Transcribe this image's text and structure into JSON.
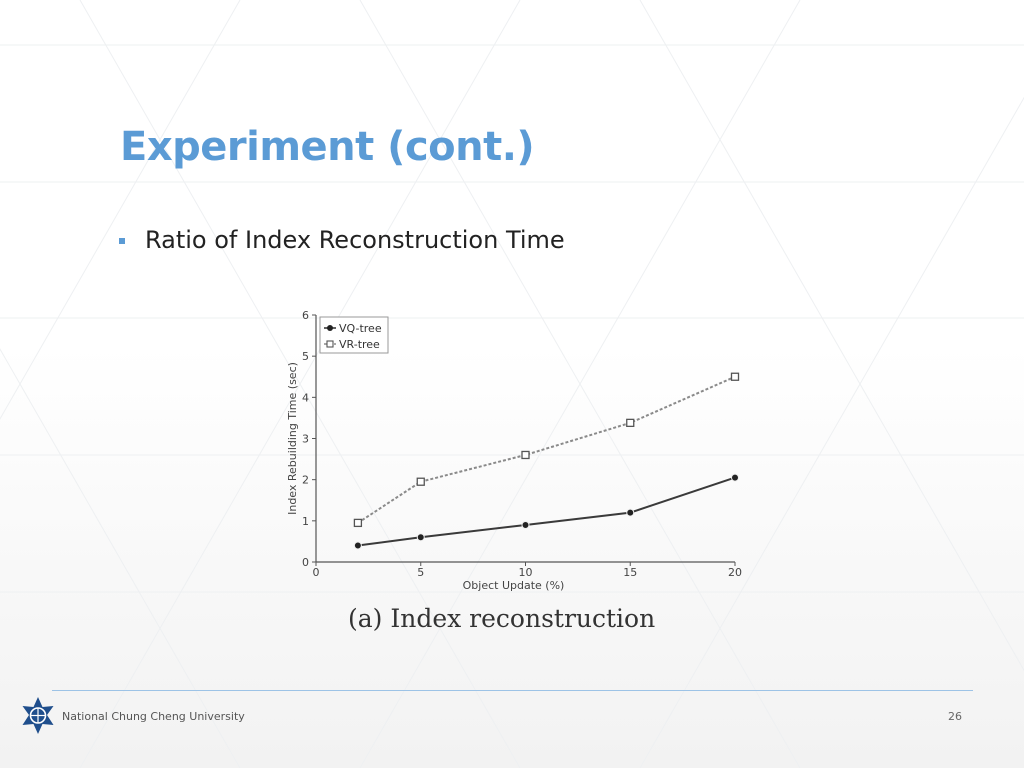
{
  "slide": {
    "title": "Experiment (cont.)",
    "bullet": "Ratio of Index Reconstruction Time",
    "caption": "(a) Index reconstruction"
  },
  "footer": {
    "university": "National Chung Cheng University",
    "page_number": "26"
  },
  "colors": {
    "title": "#5b9bd5",
    "footer_line": "#9dc3e6"
  },
  "chart_data": {
    "type": "line",
    "title": "",
    "xlabel": "Object Update (%)",
    "ylabel": "Index Rebuilding Time (sec)",
    "xlim": [
      0,
      20
    ],
    "ylim": [
      0,
      6
    ],
    "xticks": [
      0,
      5,
      10,
      15,
      20
    ],
    "yticks": [
      0,
      1,
      2,
      3,
      4,
      5,
      6
    ],
    "legend_position": "top-left",
    "grid": false,
    "series": [
      {
        "name": "VQ-tree",
        "marker": "filled-circle",
        "x": [
          2,
          5,
          10,
          15,
          20
        ],
        "y": [
          0.4,
          0.6,
          0.9,
          1.2,
          2.05
        ]
      },
      {
        "name": "VR-tree",
        "marker": "open-square",
        "x": [
          2,
          5,
          10,
          15,
          20
        ],
        "y": [
          0.95,
          1.95,
          2.6,
          3.38,
          4.5
        ]
      }
    ]
  }
}
